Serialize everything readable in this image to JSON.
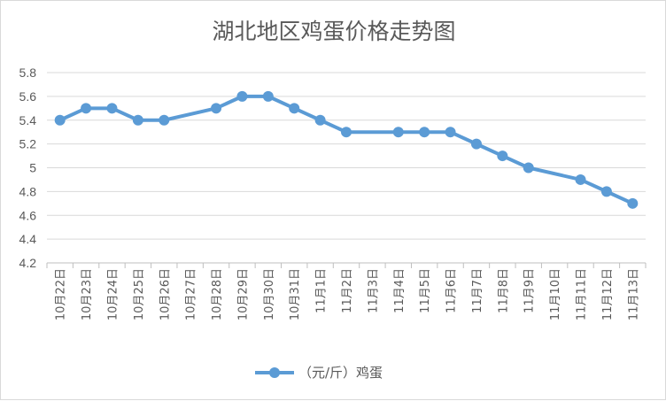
{
  "chart_data": {
    "type": "line",
    "title": "湖北地区鸡蛋价格走势图",
    "categories": [
      "10月22日",
      "10月23日",
      "10月24日",
      "10月25日",
      "10月26日",
      "10月27日",
      "10月28日",
      "10月29日",
      "10月30日",
      "10月31日",
      "11月1日",
      "11月2日",
      "11月3日",
      "11月4日",
      "11月5日",
      "11月6日",
      "11月7日",
      "11月8日",
      "11月9日",
      "11月10日",
      "11月11日",
      "11月12日",
      "11月13日"
    ],
    "series": [
      {
        "name": "（元/斤）鸡蛋",
        "color": "#5b9bd5",
        "values": [
          5.4,
          5.5,
          5.5,
          5.4,
          5.4,
          null,
          5.5,
          5.6,
          5.6,
          5.5,
          5.4,
          5.3,
          null,
          5.3,
          5.3,
          5.3,
          5.2,
          5.1,
          5.0,
          null,
          4.9,
          4.8,
          4.7
        ]
      }
    ],
    "yticks": [
      "4.2",
      "4.4",
      "4.6",
      "4.8",
      "5",
      "5.2",
      "5.4",
      "5.6",
      "5.8"
    ],
    "ylim": [
      4.2,
      5.8
    ],
    "grid": true,
    "legend": "bottom-center",
    "gap_handling": "connect"
  }
}
